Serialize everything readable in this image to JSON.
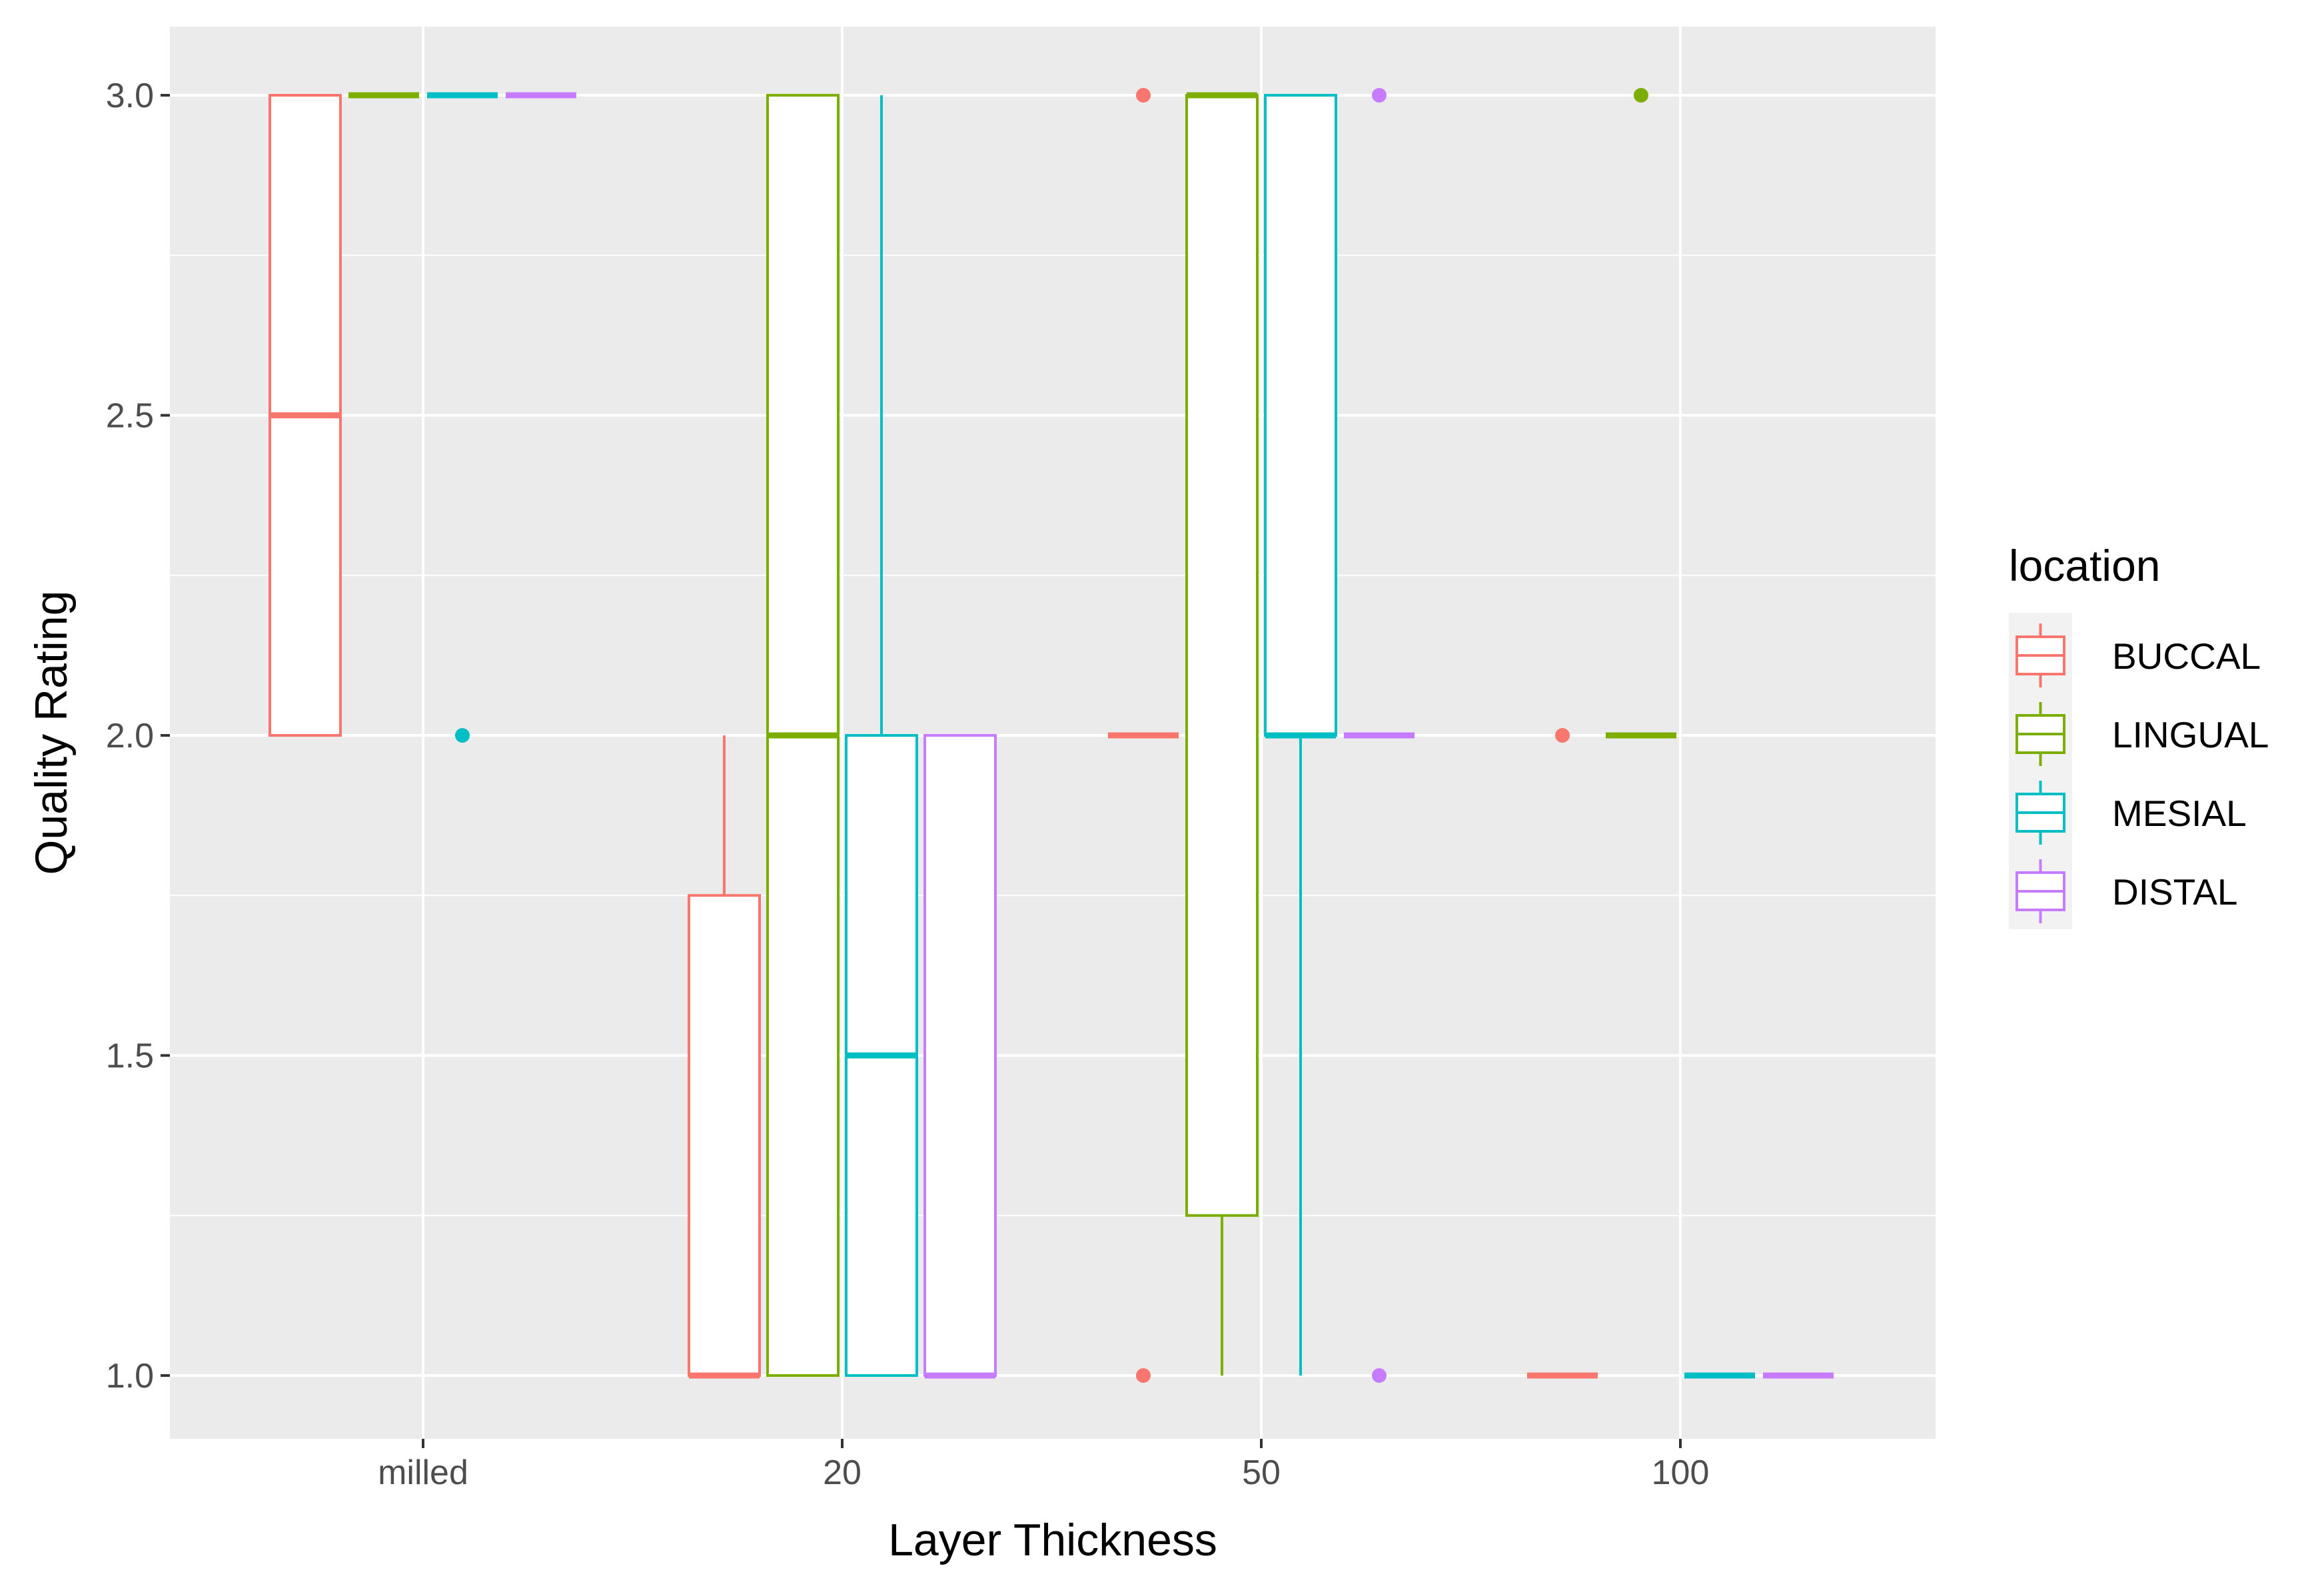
{
  "chart_data": {
    "type": "boxplot",
    "xlabel": "Layer Thickness",
    "ylabel": "Quality Rating",
    "categories": [
      "milled",
      "20",
      "50",
      "100"
    ],
    "ylim": [
      0.9,
      3.05
    ],
    "yticks": [
      "1.0",
      "1.5",
      "2.0",
      "2.5",
      "3.0"
    ],
    "grid": true,
    "legend": {
      "title": "location",
      "position": "right",
      "entries": [
        "BUCCAL",
        "LINGUAL",
        "MESIAL",
        "DISTAL"
      ]
    },
    "series": [
      {
        "name": "BUCCAL",
        "color": "#F8766D",
        "boxes": [
          {
            "category": "milled",
            "min": 2.0,
            "q1": 2.0,
            "median": 2.5,
            "q3": 3.0,
            "max": 3.0,
            "outliers": []
          },
          {
            "category": "20",
            "min": 1.0,
            "q1": 1.0,
            "median": 1.0,
            "q3": 1.75,
            "max": 2.0,
            "outliers": []
          },
          {
            "category": "50",
            "min": 2.0,
            "q1": 2.0,
            "median": 2.0,
            "q3": 2.0,
            "max": 2.0,
            "outliers": [
              1.0,
              3.0
            ]
          },
          {
            "category": "100",
            "min": 1.0,
            "q1": 1.0,
            "median": 1.0,
            "q3": 1.0,
            "max": 1.0,
            "outliers": [
              2.0
            ]
          }
        ]
      },
      {
        "name": "LINGUAL",
        "color": "#7CAE00",
        "boxes": [
          {
            "category": "milled",
            "min": 3.0,
            "q1": 3.0,
            "median": 3.0,
            "q3": 3.0,
            "max": 3.0,
            "outliers": []
          },
          {
            "category": "20",
            "min": 1.0,
            "q1": 1.0,
            "median": 2.0,
            "q3": 3.0,
            "max": 3.0,
            "outliers": []
          },
          {
            "category": "50",
            "min": 1.0,
            "q1": 1.25,
            "median": 3.0,
            "q3": 3.0,
            "max": 3.0,
            "outliers": []
          },
          {
            "category": "100",
            "min": 2.0,
            "q1": 2.0,
            "median": 2.0,
            "q3": 2.0,
            "max": 2.0,
            "outliers": [
              3.0
            ]
          }
        ]
      },
      {
        "name": "MESIAL",
        "color": "#00BFC4",
        "boxes": [
          {
            "category": "milled",
            "min": 3.0,
            "q1": 3.0,
            "median": 3.0,
            "q3": 3.0,
            "max": 3.0,
            "outliers": [
              2.0
            ]
          },
          {
            "category": "20",
            "min": 1.0,
            "q1": 1.0,
            "median": 1.5,
            "q3": 2.0,
            "max": 3.0,
            "outliers": []
          },
          {
            "category": "50",
            "min": 1.0,
            "q1": 2.0,
            "median": 2.0,
            "q3": 3.0,
            "max": 3.0,
            "outliers": []
          },
          {
            "category": "100",
            "min": 1.0,
            "q1": 1.0,
            "median": 1.0,
            "q3": 1.0,
            "max": 1.0,
            "outliers": []
          }
        ]
      },
      {
        "name": "DISTAL",
        "color": "#C77CFF",
        "boxes": [
          {
            "category": "milled",
            "min": 3.0,
            "q1": 3.0,
            "median": 3.0,
            "q3": 3.0,
            "max": 3.0,
            "outliers": []
          },
          {
            "category": "20",
            "min": 1.0,
            "q1": 1.0,
            "median": 1.0,
            "q3": 2.0,
            "max": 2.0,
            "outliers": []
          },
          {
            "category": "50",
            "min": 2.0,
            "q1": 2.0,
            "median": 2.0,
            "q3": 2.0,
            "max": 2.0,
            "outliers": [
              1.0,
              3.0
            ]
          },
          {
            "category": "100",
            "min": 1.0,
            "q1": 1.0,
            "median": 1.0,
            "q3": 1.0,
            "max": 1.0,
            "outliers": []
          }
        ]
      }
    ]
  }
}
